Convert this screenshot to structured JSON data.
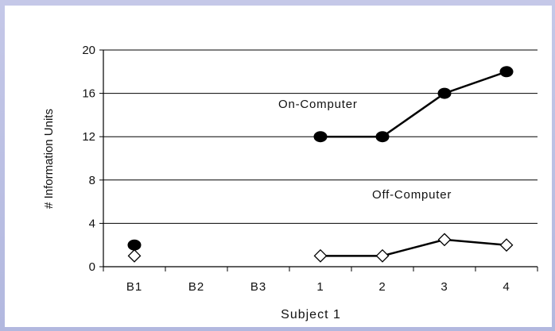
{
  "chart_data": {
    "type": "line",
    "categories": [
      "B1",
      "B2",
      "B3",
      "1",
      "2",
      "3",
      "4"
    ],
    "xlabel": "Subject 1",
    "ylabel": "# Information Units",
    "ylim": [
      0,
      20
    ],
    "yticks": [
      0,
      4,
      8,
      12,
      16,
      20
    ],
    "grid": true,
    "series": [
      {
        "name": "On-Computer",
        "marker": "filled-circle",
        "color": "#000000",
        "values": [
          2,
          null,
          null,
          12,
          12,
          16,
          18
        ]
      },
      {
        "name": "Off-Computer",
        "marker": "open-diamond",
        "color": "#000000",
        "values": [
          1,
          null,
          null,
          1,
          1,
          2.5,
          2
        ]
      }
    ]
  }
}
